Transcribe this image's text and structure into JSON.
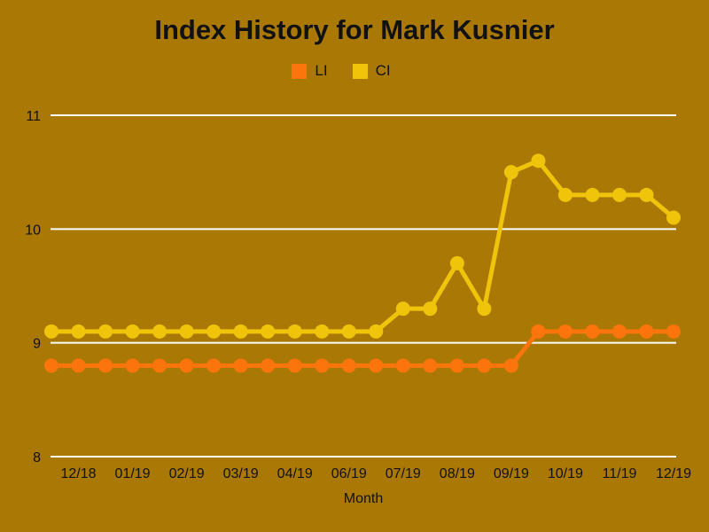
{
  "chart_data": {
    "type": "line",
    "title": "Index History for Mark Kusnier",
    "xlabel": "Month",
    "ylabel": "",
    "ylim": [
      8,
      11
    ],
    "yticks": [
      11,
      10,
      9,
      8
    ],
    "x_tick_labels": [
      "12/18",
      "01/19",
      "02/19",
      "03/19",
      "04/19",
      "06/19",
      "07/19",
      "08/19",
      "09/19",
      "10/19",
      "11/19",
      "12/19"
    ],
    "x_tick_point_indices": [
      1,
      3,
      5,
      7,
      9,
      11,
      13,
      15,
      17,
      19,
      21,
      23
    ],
    "series": [
      {
        "name": "LI",
        "color": "#FB740C",
        "values": [
          8.8,
          8.8,
          8.8,
          8.8,
          8.8,
          8.8,
          8.8,
          8.8,
          8.8,
          8.8,
          8.8,
          8.8,
          8.8,
          8.8,
          8.8,
          8.8,
          8.8,
          8.8,
          9.1,
          9.1,
          9.1,
          9.1,
          9.1,
          9.1
        ]
      },
      {
        "name": "CI",
        "color": "#EFC40A",
        "values": [
          9.1,
          9.1,
          9.1,
          9.1,
          9.1,
          9.1,
          9.1,
          9.1,
          9.1,
          9.1,
          9.1,
          9.1,
          9.1,
          9.3,
          9.3,
          9.7,
          9.3,
          10.5,
          10.6,
          10.3,
          10.3,
          10.3,
          10.3,
          10.1
        ]
      }
    ],
    "legend_position": "top",
    "grid": "horizontal",
    "grid_color": "#FFFFFF",
    "background_color": "#A97805",
    "text_color": "#111111"
  }
}
